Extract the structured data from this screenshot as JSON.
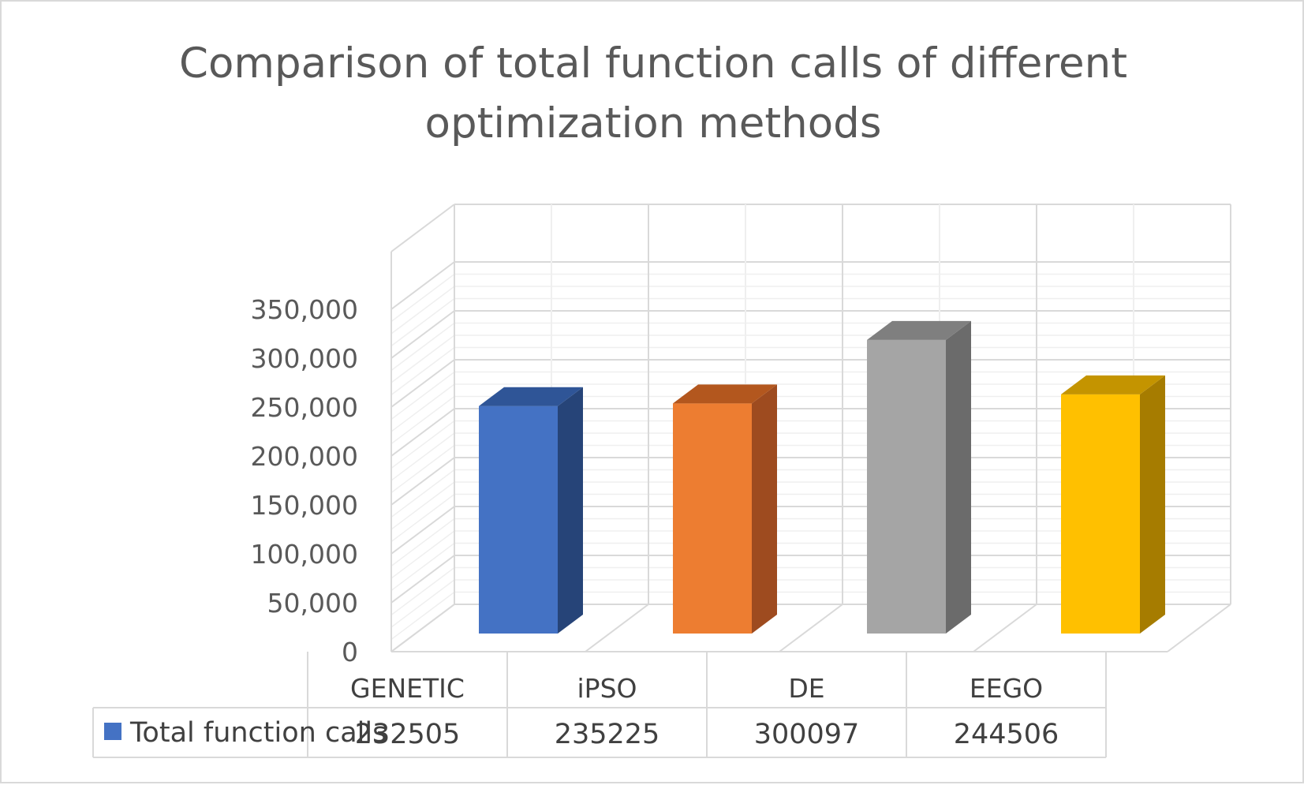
{
  "chart_data": {
    "type": "bar",
    "title": "Comparison of total function calls of different optimization methods",
    "title_lines": [
      "Comparison of total function calls of different",
      "optimization methods"
    ],
    "categories": [
      "GENETIC",
      "iPSO",
      "DE",
      "EEGO"
    ],
    "series": [
      {
        "name": "Total function calls",
        "values": [
          232505,
          235225,
          300097,
          244506
        ],
        "labels": [
          "232505",
          "235225",
          "300097",
          "244506"
        ],
        "legend_color": "#4472c4"
      }
    ],
    "bar_colors": [
      {
        "front": "#4472c4",
        "top": "#2f5597",
        "side": "#264478"
      },
      {
        "front": "#ed7d31",
        "top": "#b3571e",
        "side": "#9e4b1f"
      },
      {
        "front": "#a5a5a5",
        "top": "#7f7f7f",
        "side": "#6b6b6b"
      },
      {
        "front": "#ffc000",
        "top": "#c49400",
        "side": "#a67c00"
      }
    ],
    "y_ticks": [
      0,
      50000,
      100000,
      150000,
      200000,
      250000,
      300000,
      350000
    ],
    "y_tick_labels": [
      "0",
      "50,000",
      "100,000",
      "150,000",
      "200,000",
      "250,000",
      "300,000",
      "350,000"
    ],
    "ylim": [
      0,
      350000
    ],
    "xlabel": "",
    "ylabel": "",
    "grid": true,
    "perspective": "3d",
    "legend": "data-table"
  }
}
